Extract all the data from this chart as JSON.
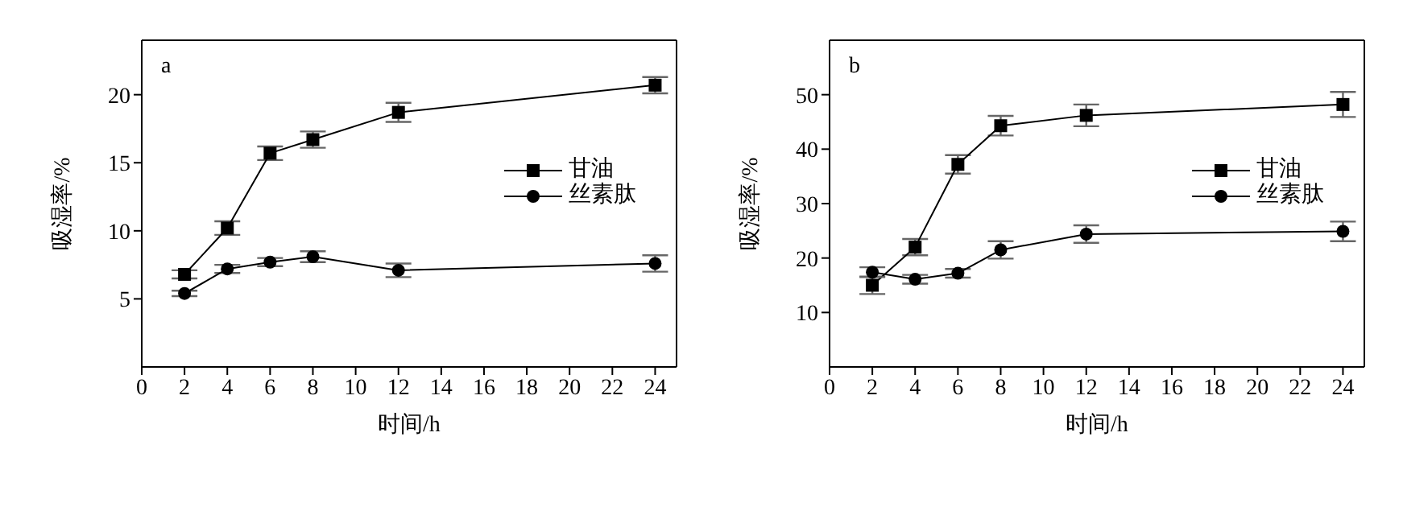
{
  "chart_data": [
    {
      "type": "line",
      "annotations": [
        "a"
      ],
      "xlabel": "时间/h",
      "ylabel": "吸湿率/%",
      "x": [
        2,
        4,
        6,
        8,
        12,
        24
      ],
      "xlim": [
        0,
        25
      ],
      "xticks": [
        0,
        2,
        4,
        6,
        8,
        10,
        12,
        14,
        16,
        18,
        20,
        22,
        24
      ],
      "ylim": [
        0,
        24
      ],
      "yticks": [
        5,
        10,
        15,
        20
      ],
      "legend": "right",
      "grid": false,
      "series": [
        {
          "name": "甘油",
          "color": "#000000",
          "marker": "square",
          "values": [
            6.8,
            10.2,
            15.7,
            16.7,
            18.7,
            20.7
          ],
          "errors": [
            0.3,
            0.5,
            0.5,
            0.6,
            0.7,
            0.6
          ]
        },
        {
          "name": "丝素肽",
          "color": "#000000",
          "marker": "circle",
          "values": [
            5.4,
            7.2,
            7.7,
            8.1,
            7.1,
            7.6
          ],
          "errors": [
            0.2,
            0.3,
            0.3,
            0.4,
            0.5,
            0.6
          ]
        }
      ]
    },
    {
      "type": "line",
      "annotations": [
        "b"
      ],
      "xlabel": "时间/h",
      "ylabel": "吸湿率/%",
      "x": [
        2,
        4,
        6,
        8,
        12,
        24
      ],
      "xlim": [
        0,
        25
      ],
      "xticks": [
        0,
        2,
        4,
        6,
        8,
        10,
        12,
        14,
        16,
        18,
        20,
        22,
        24
      ],
      "ylim": [
        0,
        60
      ],
      "yticks": [
        10,
        20,
        30,
        40,
        50
      ],
      "legend": "right",
      "grid": false,
      "series": [
        {
          "name": "甘油",
          "color": "#000000",
          "marker": "square",
          "values": [
            15.0,
            22.0,
            37.2,
            44.3,
            46.2,
            48.2
          ],
          "errors": [
            1.6,
            1.5,
            1.7,
            1.8,
            2.0,
            2.3
          ]
        },
        {
          "name": "丝素肽",
          "color": "#000000",
          "marker": "circle",
          "values": [
            17.4,
            16.1,
            17.2,
            21.5,
            24.4,
            24.9
          ],
          "errors": [
            0.9,
            0.8,
            0.8,
            1.6,
            1.6,
            1.8
          ]
        }
      ]
    }
  ]
}
